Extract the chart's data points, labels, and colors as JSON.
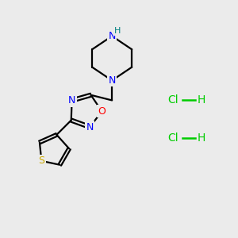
{
  "background_color": "#ebebeb",
  "atom_colors": {
    "C": "#000000",
    "N": "#0000ff",
    "O": "#ff0000",
    "S": "#ccaa00",
    "H": "#008080",
    "Cl": "#00cc00"
  },
  "line_color": "#000000",
  "hcl_color": "#00cc00",
  "nh_color": "#008080",
  "lw": 1.6
}
